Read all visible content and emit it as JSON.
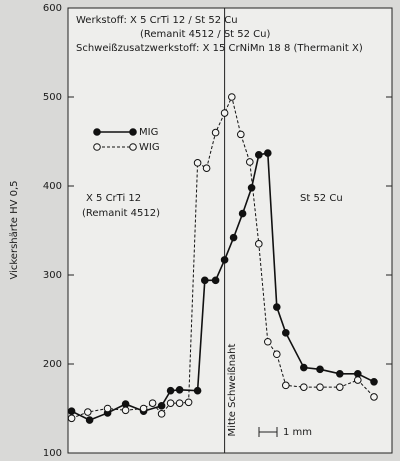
{
  "chart_data": {
    "type": "line",
    "y_label": "Vickershärte HV 0,5",
    "annotations": [
      "Werkstoff: X 5 CrTi 12 / St 52 Cu",
      "(Remanit 4512 / St 52 Cu)",
      "Schweißzusatzwerkstoff: X 15 CrNiMn 18 8 (Thermanit X)",
      "X 5 CrTi 12",
      "(Remanit 4512)",
      "St 52 Cu",
      "Mitte Schweißnaht",
      "1 mm"
    ],
    "center_x": 8.7,
    "xlim": [
      0,
      18
    ],
    "ylim": [
      100,
      600
    ],
    "yticks": [
      100,
      200,
      300,
      400,
      500,
      600
    ],
    "series": [
      {
        "name": "MIG",
        "color": "#111111",
        "dashed": false,
        "marker": "filled",
        "x": [
          0.2,
          1.2,
          2.2,
          3.2,
          4.2,
          5.2,
          5.7,
          6.2,
          7.2,
          7.6,
          8.2,
          8.7,
          9.2,
          9.7,
          10.2,
          10.6,
          11.1,
          11.6,
          12.1,
          13.1,
          14,
          15.1,
          16.1,
          17
        ],
        "values": [
          147,
          137,
          145,
          155,
          147,
          153,
          170,
          171,
          170,
          294,
          294,
          317,
          342,
          369,
          398,
          435,
          437,
          264,
          235,
          196,
          194,
          189,
          189,
          180
        ]
      },
      {
        "name": "WIG",
        "color": "#111111",
        "dashed": true,
        "marker": "open",
        "x": [
          0.2,
          1.1,
          2.2,
          3.2,
          4.2,
          4.7,
          5.2,
          5.7,
          6.2,
          6.7,
          7.2,
          7.7,
          8.2,
          8.7,
          9.1,
          9.6,
          10.1,
          10.6,
          11.1,
          11.6,
          12.1,
          13.1,
          14,
          15.1,
          16.1,
          17
        ],
        "values": [
          139,
          146,
          150,
          148,
          150,
          156,
          144,
          156,
          156,
          157,
          426,
          420,
          460,
          482,
          500,
          458,
          427,
          335,
          225,
          211,
          176,
          174,
          174,
          174,
          182,
          163
        ]
      }
    ]
  }
}
